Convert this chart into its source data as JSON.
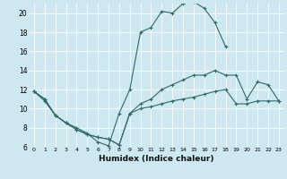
{
  "xlabel": "Humidex (Indice chaleur)",
  "ylabel": "",
  "xlim": [
    -0.5,
    23.5
  ],
  "ylim": [
    6,
    21
  ],
  "xticks": [
    0,
    1,
    2,
    3,
    4,
    5,
    6,
    7,
    8,
    9,
    10,
    11,
    12,
    13,
    14,
    15,
    16,
    17,
    18,
    19,
    20,
    21,
    22,
    23
  ],
  "yticks": [
    6,
    8,
    10,
    12,
    14,
    16,
    18,
    20
  ],
  "bg_color": "#cde8f0",
  "grid_color": "#ffffff",
  "line_color": "#2e6b65",
  "line1_x": [
    0,
    1,
    2,
    3,
    4,
    5,
    6,
    7,
    8,
    9,
    10,
    11,
    12,
    13,
    14,
    15,
    16,
    17,
    18
  ],
  "line1_y": [
    11.8,
    10.8,
    9.3,
    8.5,
    8.0,
    7.4,
    6.5,
    6.1,
    9.5,
    12.0,
    18.0,
    18.5,
    20.2,
    20.0,
    21.0,
    21.2,
    20.5,
    19.0,
    16.5
  ],
  "line2_x": [
    0,
    1,
    2,
    3,
    4,
    5,
    6,
    7,
    8,
    9,
    10,
    11,
    12,
    13,
    14,
    15,
    16,
    17,
    18,
    19,
    20,
    21,
    22,
    23
  ],
  "line2_y": [
    11.8,
    11.0,
    9.3,
    8.5,
    7.8,
    7.3,
    7.0,
    6.8,
    6.2,
    9.5,
    10.5,
    11.0,
    12.0,
    12.5,
    13.0,
    13.5,
    13.5,
    14.0,
    13.5,
    13.5,
    11.0,
    12.8,
    12.5,
    10.8
  ],
  "line3_x": [
    0,
    1,
    2,
    3,
    4,
    5,
    6,
    7,
    8,
    9,
    10,
    11,
    12,
    13,
    14,
    15,
    16,
    17,
    18,
    19,
    20,
    21,
    22,
    23
  ],
  "line3_y": [
    11.8,
    11.0,
    9.3,
    8.5,
    7.8,
    7.3,
    7.0,
    6.8,
    6.2,
    9.5,
    10.0,
    10.2,
    10.5,
    10.8,
    11.0,
    11.2,
    11.5,
    11.8,
    12.0,
    10.5,
    10.5,
    10.8,
    10.8,
    10.8
  ]
}
